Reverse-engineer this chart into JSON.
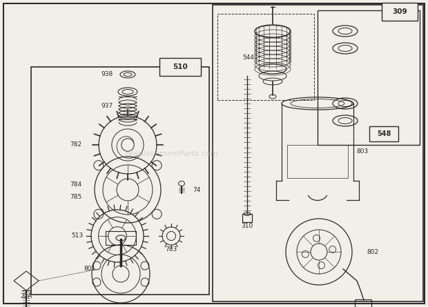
{
  "bg_color": "#f0efe8",
  "line_color": "#2a2a2a",
  "watermark": "eReplacementParts.com",
  "fig_w": 6.2,
  "fig_h": 4.45,
  "dpi": 100
}
